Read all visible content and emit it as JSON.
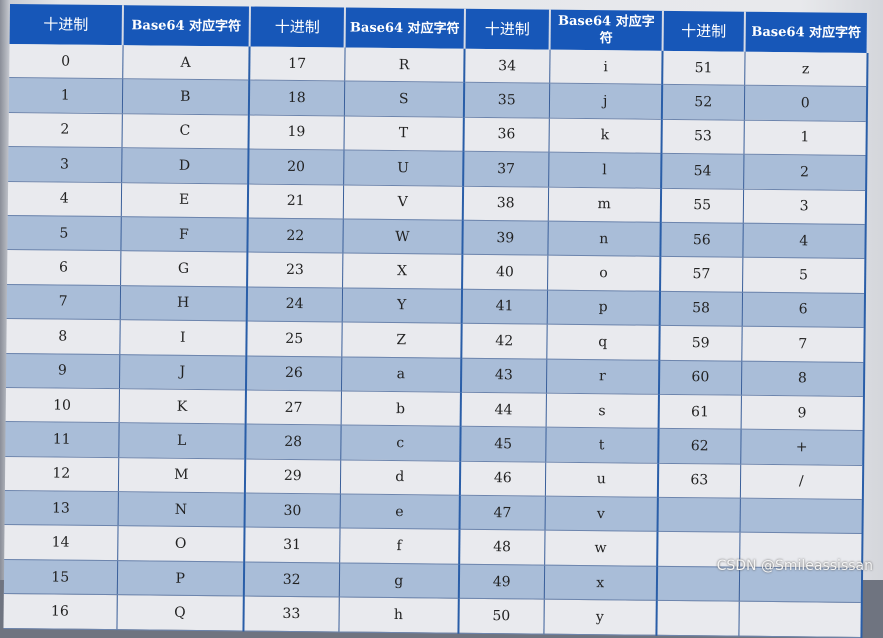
{
  "headers": [
    "十进制",
    "Base64 对应字符",
    "十进制",
    "Base64 对应字符",
    "十进制",
    "Base64 对应字符",
    "十进制",
    "Base64 对应字符"
  ],
  "groups": [
    {
      "decimals": [
        "0",
        "1",
        "2",
        "3",
        "4",
        "5",
        "6",
        "7",
        "8",
        "9",
        "10",
        "11",
        "12",
        "13",
        "14",
        "15",
        "16"
      ],
      "chars": [
        "A",
        "B",
        "C",
        "D",
        "E",
        "F",
        "G",
        "H",
        "I",
        "J",
        "K",
        "L",
        "M",
        "N",
        "O",
        "P",
        "Q"
      ]
    },
    {
      "decimals": [
        "17",
        "18",
        "19",
        "20",
        "21",
        "22",
        "23",
        "24",
        "25",
        "26",
        "27",
        "28",
        "29",
        "30",
        "31",
        "32",
        "33"
      ],
      "chars": [
        "R",
        "S",
        "T",
        "U",
        "V",
        "W",
        "X",
        "Y",
        "Z",
        "a",
        "b",
        "c",
        "d",
        "e",
        "f",
        "g",
        "h"
      ]
    },
    {
      "decimals": [
        "34",
        "35",
        "36",
        "37",
        "38",
        "39",
        "40",
        "41",
        "42",
        "43",
        "44",
        "45",
        "46",
        "47",
        "48",
        "49",
        "50"
      ],
      "chars": [
        "i",
        "j",
        "k",
        "l",
        "m",
        "n",
        "o",
        "p",
        "q",
        "r",
        "s",
        "t",
        "u",
        "v",
        "w",
        "x",
        "y"
      ]
    },
    {
      "decimals": [
        "51",
        "52",
        "53",
        "54",
        "55",
        "56",
        "57",
        "58",
        "59",
        "60",
        "61",
        "62",
        "63",
        "",
        "",
        "",
        ""
      ],
      "chars": [
        "z",
        "0",
        "1",
        "2",
        "3",
        "4",
        "5",
        "6",
        "7",
        "8",
        "9",
        "+",
        "/",
        "",
        "",
        "",
        ""
      ]
    }
  ],
  "watermark": "CSDN @Smileassissan"
}
